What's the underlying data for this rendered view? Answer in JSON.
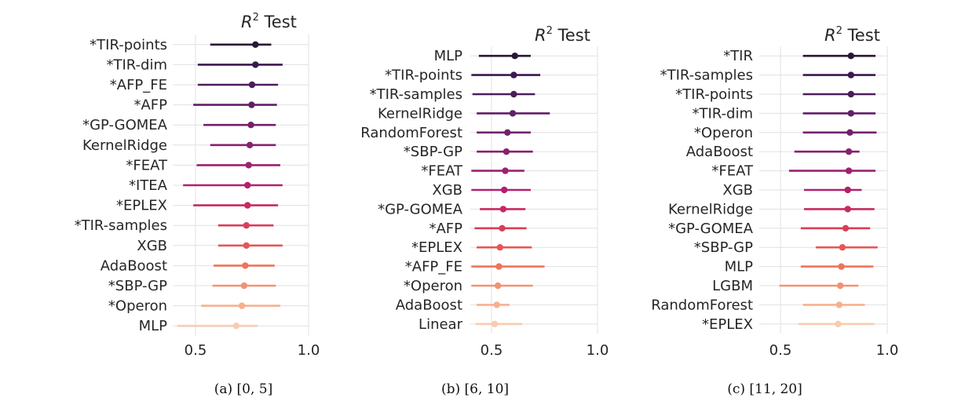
{
  "chart_data": [
    {
      "type": "forest",
      "title": "R² Test",
      "title_base": "R",
      "title_sup": "2",
      "title_rest": " Test",
      "caption": "(a) [0, 5]",
      "xlim": [
        0.4,
        1.0
      ],
      "xticks": [
        0.5,
        1.0
      ],
      "xtick_labels": [
        "0.5",
        "1.0"
      ],
      "grid": true,
      "colors": [
        "#2a1637",
        "#3b1850",
        "#4e1c5d",
        "#601f66",
        "#73216c",
        "#87216e",
        "#9c2170",
        "#b1206e",
        "#c52a63",
        "#d83e5a",
        "#e65654",
        "#ef7359",
        "#f39273",
        "#f6b08e",
        "#f8ccb0"
      ],
      "rows": [
        {
          "label": "*TIR-points",
          "mean": 0.765,
          "low": 0.565,
          "high": 0.835
        },
        {
          "label": "*TIR-dim",
          "mean": 0.765,
          "low": 0.51,
          "high": 0.885
        },
        {
          "label": "*AFP_FE",
          "mean": 0.75,
          "low": 0.51,
          "high": 0.865
        },
        {
          "label": "*AFP",
          "mean": 0.748,
          "low": 0.49,
          "high": 0.86
        },
        {
          "label": "*GP-GOMEA",
          "mean": 0.745,
          "low": 0.535,
          "high": 0.855
        },
        {
          "label": "KernelRidge",
          "mean": 0.74,
          "low": 0.565,
          "high": 0.855
        },
        {
          "label": "*FEAT",
          "mean": 0.735,
          "low": 0.505,
          "high": 0.875
        },
        {
          "label": "*ITEA",
          "mean": 0.73,
          "low": 0.445,
          "high": 0.885
        },
        {
          "label": "*EPLEX",
          "mean": 0.73,
          "low": 0.49,
          "high": 0.865
        },
        {
          "label": "*TIR-samples",
          "mean": 0.725,
          "low": 0.6,
          "high": 0.845
        },
        {
          "label": "XGB",
          "mean": 0.725,
          "low": 0.6,
          "high": 0.885
        },
        {
          "label": "AdaBoost",
          "mean": 0.72,
          "low": 0.58,
          "high": 0.85
        },
        {
          "label": "*SBP-GP",
          "mean": 0.715,
          "low": 0.575,
          "high": 0.855
        },
        {
          "label": "*Operon",
          "mean": 0.705,
          "low": 0.525,
          "high": 0.875
        },
        {
          "label": "MLP",
          "mean": 0.68,
          "low": 0.42,
          "high": 0.775
        }
      ]
    },
    {
      "type": "forest",
      "title": "R² Test",
      "title_base": "R",
      "title_sup": "2",
      "title_rest": " Test",
      "caption": "(b) [6, 10]",
      "xlim": [
        0.4,
        1.0
      ],
      "xticks": [
        0.5,
        1.0
      ],
      "xtick_labels": [
        "0.5",
        "1.0"
      ],
      "grid": true,
      "colors": [
        "#2a1637",
        "#3b1850",
        "#4e1c5d",
        "#601f66",
        "#73216c",
        "#87216e",
        "#9c2170",
        "#b1206e",
        "#c52a63",
        "#d83e5a",
        "#e65654",
        "#ef7359",
        "#f39273",
        "#f6b08e",
        "#f8ccb0"
      ],
      "rows": [
        {
          "label": "MLP",
          "mean": 0.61,
          "low": 0.44,
          "high": 0.685
        },
        {
          "label": "*TIR-points",
          "mean": 0.605,
          "low": 0.405,
          "high": 0.73
        },
        {
          "label": "*TIR-samples",
          "mean": 0.605,
          "low": 0.41,
          "high": 0.705
        },
        {
          "label": "KernelRidge",
          "mean": 0.6,
          "low": 0.43,
          "high": 0.775
        },
        {
          "label": "RandomForest",
          "mean": 0.575,
          "low": 0.43,
          "high": 0.685
        },
        {
          "label": "*SBP-GP",
          "mean": 0.57,
          "low": 0.43,
          "high": 0.695
        },
        {
          "label": "*FEAT",
          "mean": 0.565,
          "low": 0.405,
          "high": 0.655
        },
        {
          "label": "XGB",
          "mean": 0.56,
          "low": 0.405,
          "high": 0.685
        },
        {
          "label": "*GP-GOMEA",
          "mean": 0.555,
          "low": 0.445,
          "high": 0.66
        },
        {
          "label": "*AFP",
          "mean": 0.55,
          "low": 0.42,
          "high": 0.665
        },
        {
          "label": "*EPLEX",
          "mean": 0.54,
          "low": 0.43,
          "high": 0.69
        },
        {
          "label": "*AFP_FE",
          "mean": 0.535,
          "low": 0.405,
          "high": 0.75
        },
        {
          "label": "*Operon",
          "mean": 0.53,
          "low": 0.405,
          "high": 0.695
        },
        {
          "label": "AdaBoost",
          "mean": 0.525,
          "low": 0.43,
          "high": 0.585
        },
        {
          "label": "Linear",
          "mean": 0.515,
          "low": 0.425,
          "high": 0.645
        }
      ]
    },
    {
      "type": "forest",
      "title": "R² Test",
      "title_base": "R",
      "title_sup": "2",
      "title_rest": " Test",
      "caption": "(c) [11, 20]",
      "xlim": [
        0.4,
        1.0
      ],
      "xticks": [
        0.5,
        1.0
      ],
      "xtick_labels": [
        "0.5",
        "1.0"
      ],
      "grid": true,
      "colors": [
        "#2a1637",
        "#3b1850",
        "#4e1c5d",
        "#601f66",
        "#73216c",
        "#87216e",
        "#9c2170",
        "#b1206e",
        "#c52a63",
        "#d83e5a",
        "#e65654",
        "#ef7359",
        "#f39273",
        "#f6b08e",
        "#f8ccb0"
      ],
      "rows": [
        {
          "label": "*TIR",
          "mean": 0.83,
          "low": 0.605,
          "high": 0.945
        },
        {
          "label": "*TIR-samples",
          "mean": 0.83,
          "low": 0.605,
          "high": 0.945
        },
        {
          "label": "*TIR-points",
          "mean": 0.83,
          "low": 0.605,
          "high": 0.945
        },
        {
          "label": "*TIR-dim",
          "mean": 0.83,
          "low": 0.605,
          "high": 0.945
        },
        {
          "label": "*Operon",
          "mean": 0.825,
          "low": 0.605,
          "high": 0.95
        },
        {
          "label": "AdaBoost",
          "mean": 0.82,
          "low": 0.565,
          "high": 0.87
        },
        {
          "label": "*FEAT",
          "mean": 0.82,
          "low": 0.54,
          "high": 0.945
        },
        {
          "label": "XGB",
          "mean": 0.815,
          "low": 0.61,
          "high": 0.88
        },
        {
          "label": "KernelRidge",
          "mean": 0.815,
          "low": 0.61,
          "high": 0.94
        },
        {
          "label": "*GP-GOMEA",
          "mean": 0.805,
          "low": 0.595,
          "high": 0.92
        },
        {
          "label": "*SBP-GP",
          "mean": 0.79,
          "low": 0.665,
          "high": 0.955
        },
        {
          "label": "MLP",
          "mean": 0.785,
          "low": 0.595,
          "high": 0.935
        },
        {
          "label": "LGBM",
          "mean": 0.78,
          "low": 0.495,
          "high": 0.865
        },
        {
          "label": "RandomForest",
          "mean": 0.775,
          "low": 0.605,
          "high": 0.895
        },
        {
          "label": "*EPLEX",
          "mean": 0.77,
          "low": 0.585,
          "high": 0.94
        }
      ]
    }
  ]
}
